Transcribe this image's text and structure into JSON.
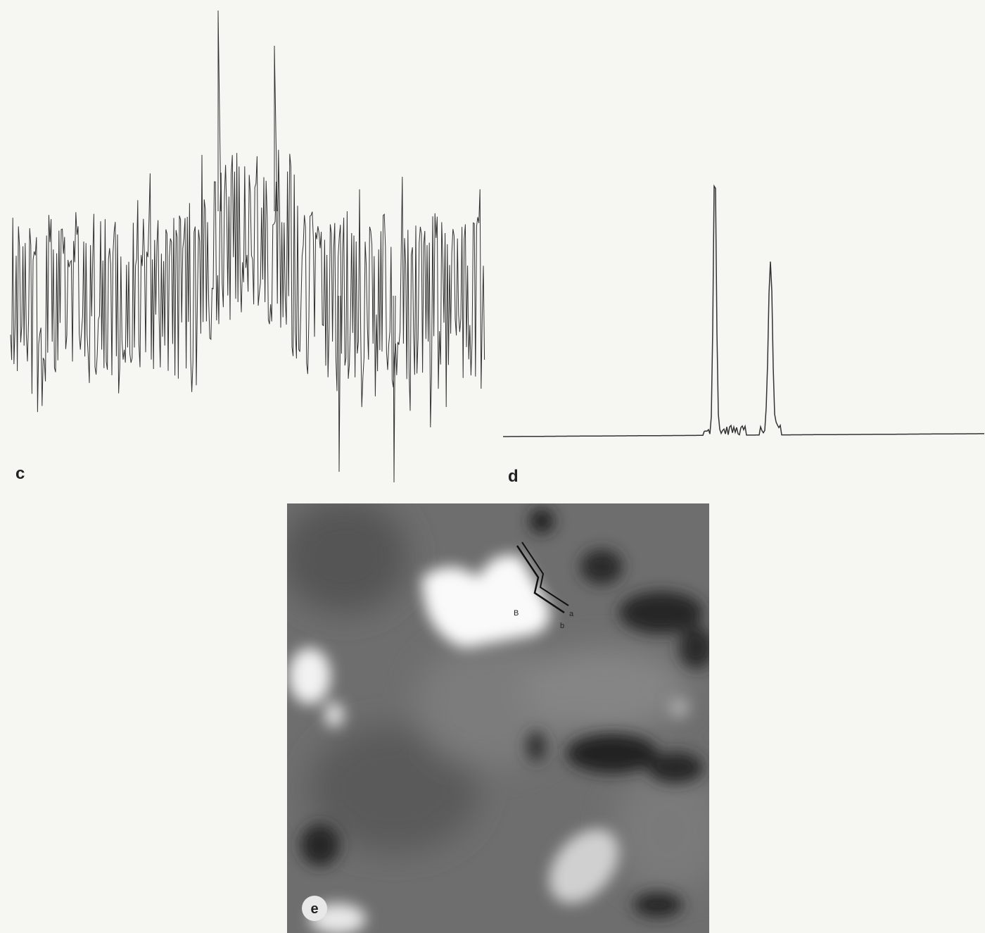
{
  "panels": [
    {
      "label": "c"
    },
    {
      "label": "d"
    },
    {
      "label": "e",
      "annotations": [
        "B",
        "a",
        "b"
      ]
    }
  ]
}
